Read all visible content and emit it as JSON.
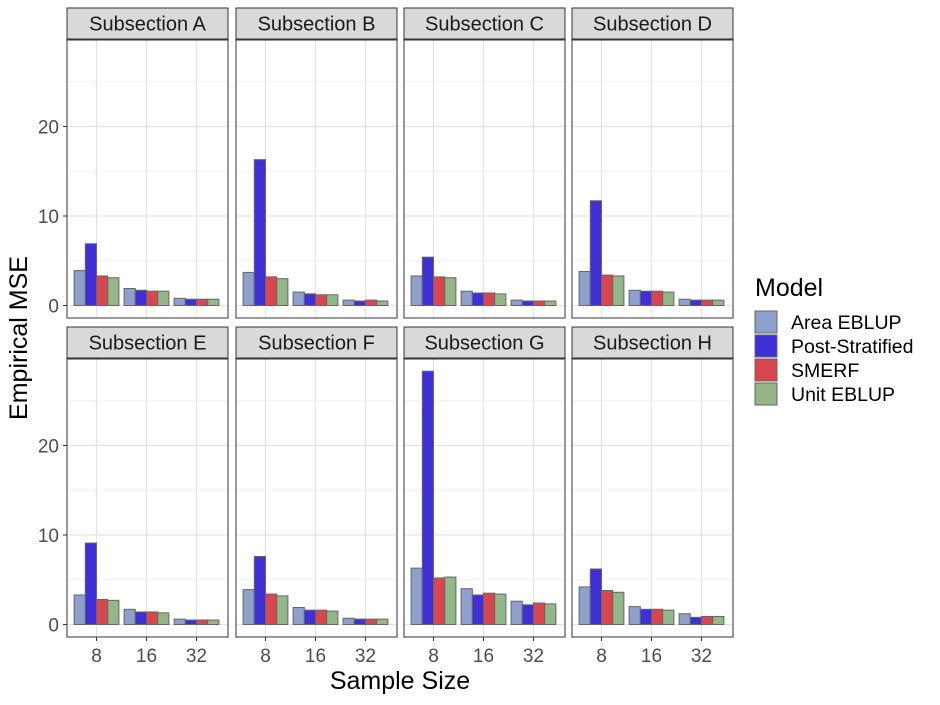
{
  "chart_data": {
    "type": "bar",
    "xlabel": "Sample Size",
    "ylabel": "Empirical MSE",
    "ylim": [
      0,
      30
    ],
    "yticks": [
      0,
      10,
      20
    ],
    "categories": [
      "8",
      "16",
      "32"
    ],
    "grid": true,
    "legend": {
      "title": "Model",
      "placement": "right"
    },
    "series_meta": [
      {
        "name": "Area EBLUP",
        "color": "#8da0cb"
      },
      {
        "name": "Post-Stratified",
        "color": "#3f2fd6"
      },
      {
        "name": "SMERF",
        "color": "#d9474e"
      },
      {
        "name": "Unit EBLUP",
        "color": "#94b788"
      }
    ],
    "panels": [
      {
        "title": "Subsection A",
        "values": [
          [
            3.9,
            1.9,
            0.8
          ],
          [
            6.9,
            1.7,
            0.7
          ],
          [
            3.3,
            1.6,
            0.7
          ],
          [
            3.1,
            1.6,
            0.7
          ]
        ]
      },
      {
        "title": "Subsection B",
        "values": [
          [
            3.7,
            1.5,
            0.6
          ],
          [
            16.3,
            1.3,
            0.5
          ],
          [
            3.2,
            1.2,
            0.6
          ],
          [
            3.0,
            1.2,
            0.5
          ]
        ]
      },
      {
        "title": "Subsection C",
        "values": [
          [
            3.3,
            1.6,
            0.6
          ],
          [
            5.4,
            1.4,
            0.5
          ],
          [
            3.2,
            1.4,
            0.5
          ],
          [
            3.1,
            1.3,
            0.5
          ]
        ]
      },
      {
        "title": "Subsection D",
        "values": [
          [
            3.8,
            1.7,
            0.7
          ],
          [
            11.7,
            1.6,
            0.6
          ],
          [
            3.4,
            1.6,
            0.6
          ],
          [
            3.3,
            1.5,
            0.6
          ]
        ]
      },
      {
        "title": "Subsection E",
        "values": [
          [
            3.3,
            1.7,
            0.6
          ],
          [
            9.1,
            1.4,
            0.5
          ],
          [
            2.8,
            1.4,
            0.5
          ],
          [
            2.7,
            1.3,
            0.5
          ]
        ]
      },
      {
        "title": "Subsection F",
        "values": [
          [
            3.9,
            1.9,
            0.7
          ],
          [
            7.6,
            1.6,
            0.6
          ],
          [
            3.4,
            1.6,
            0.6
          ],
          [
            3.2,
            1.5,
            0.6
          ]
        ]
      },
      {
        "title": "Subsection G",
        "values": [
          [
            6.3,
            4.0,
            2.6
          ],
          [
            28.3,
            3.3,
            2.2
          ],
          [
            5.2,
            3.5,
            2.4
          ],
          [
            5.3,
            3.4,
            2.3
          ]
        ]
      },
      {
        "title": "Subsection H",
        "values": [
          [
            4.2,
            2.0,
            1.2
          ],
          [
            6.2,
            1.7,
            0.8
          ],
          [
            3.8,
            1.7,
            0.9
          ],
          [
            3.6,
            1.6,
            0.9
          ]
        ]
      }
    ]
  }
}
